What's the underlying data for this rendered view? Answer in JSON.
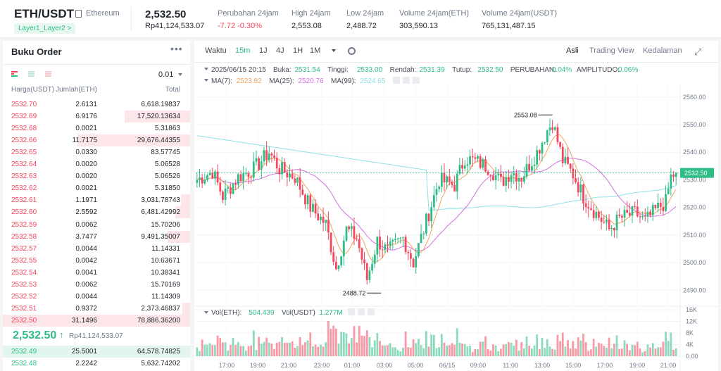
{
  "header": {
    "pair": "ETH/USDT",
    "pair_sub": "Ethereum",
    "tag": "Layer1_Layer2 >",
    "price": "2,532.50",
    "price_fiat": "Rp41,124,533.07",
    "stats": [
      {
        "label": "Perubahan 24jam",
        "value": "-7.72 -0.30%",
        "negative": true
      },
      {
        "label": "High 24jam",
        "value": "2,553.08",
        "negative": false
      },
      {
        "label": "Low 24jam",
        "value": "2,488.72",
        "negative": false
      },
      {
        "label": "Volume 24jam(ETH)",
        "value": "303,590.13",
        "negative": false
      },
      {
        "label": "Volume 24jam(USDT)",
        "value": "765,131,487.15",
        "negative": false
      }
    ]
  },
  "orderbook": {
    "title": "Buku Order",
    "more": "•••",
    "precision": "0.01",
    "headers": {
      "price": "Harga(USDT)",
      "qty": "Jumlah(ETH)",
      "total": "Total"
    },
    "asks": [
      {
        "price": "2532.70",
        "qty": "2.6131",
        "total": "6,618.19837",
        "depth": 0.0
      },
      {
        "price": "2532.69",
        "qty": "6.9176",
        "total": "17,520.13634",
        "depth": 0.35
      },
      {
        "price": "2532.68",
        "qty": "0.0021",
        "total": "5.31863",
        "depth": 0.0
      },
      {
        "price": "2532.66",
        "qty": "11.7175",
        "total": "29,676.44355",
        "depth": 0.6
      },
      {
        "price": "2532.65",
        "qty": "0.0330",
        "total": "83.57745",
        "depth": 0.0
      },
      {
        "price": "2532.64",
        "qty": "0.0020",
        "total": "5.06528",
        "depth": 0.0
      },
      {
        "price": "2532.63",
        "qty": "0.0020",
        "total": "5.06526",
        "depth": 0.0
      },
      {
        "price": "2532.62",
        "qty": "0.0021",
        "total": "5.31850",
        "depth": 0.0
      },
      {
        "price": "2532.61",
        "qty": "1.1971",
        "total": "3,031.78743",
        "depth": 0.05
      },
      {
        "price": "2532.60",
        "qty": "2.5592",
        "total": "6,481.42992",
        "depth": 0.08
      },
      {
        "price": "2532.59",
        "qty": "0.0062",
        "total": "15.70206",
        "depth": 0.0
      },
      {
        "price": "2532.58",
        "qty": "3.7477",
        "total": "9,491.35007",
        "depth": 0.12
      },
      {
        "price": "2532.57",
        "qty": "0.0044",
        "total": "11.14331",
        "depth": 0.0
      },
      {
        "price": "2532.55",
        "qty": "0.0042",
        "total": "10.63671",
        "depth": 0.0
      },
      {
        "price": "2532.54",
        "qty": "0.0041",
        "total": "10.38341",
        "depth": 0.0
      },
      {
        "price": "2532.53",
        "qty": "0.0062",
        "total": "15.70169",
        "depth": 0.0
      },
      {
        "price": "2532.52",
        "qty": "0.0044",
        "total": "11.14309",
        "depth": 0.0
      },
      {
        "price": "2532.51",
        "qty": "0.9372",
        "total": "2,373.46837",
        "depth": 0.04
      },
      {
        "price": "2532.50",
        "qty": "31.1496",
        "total": "78,886.36200",
        "depth": 1.0
      }
    ],
    "mid": {
      "price": "2,532.50",
      "arrow": "↑",
      "fiat": "Rp41,124,533.07"
    },
    "bids": [
      {
        "price": "2532.49",
        "qty": "25.5001",
        "total": "64,578.74825",
        "depth": 1.0
      },
      {
        "price": "2532.48",
        "qty": "2.2242",
        "total": "5,632.74202",
        "depth": 0.0
      }
    ]
  },
  "chart_toolbar": {
    "items": [
      "Waktu",
      "15m",
      "1J",
      "4J",
      "1H",
      "1M"
    ],
    "active": "15m",
    "right": [
      "Asli",
      "Trading View",
      "Kedalaman"
    ],
    "right_active": "Asli"
  },
  "chart_data": {
    "type": "candlestick",
    "legend": {
      "date": "2025/06/15 20:15",
      "items": [
        {
          "label": "Buka:",
          "value": "2531.54"
        },
        {
          "label": "Tinggi:",
          "value": "2533.00"
        },
        {
          "label": "Rendah:",
          "value": "2531.39"
        },
        {
          "label": "Tutup:",
          "value": "2532.50"
        },
        {
          "label": "PERUBAHAN:",
          "value": "0.04%"
        },
        {
          "label": "AMPLITUDO:",
          "value": "0.06%"
        }
      ],
      "ma": [
        {
          "label": "MA(7):",
          "value": "2523.82",
          "color": "#f0a35e"
        },
        {
          "label": "MA(25):",
          "value": "2520.76",
          "color": "#d36fe0"
        },
        {
          "label": "MA(99):",
          "value": "2524.65",
          "color": "#8fe0e8"
        }
      ]
    },
    "y_ticks": [
      "2560.00",
      "2550.00",
      "2540.00",
      "2530.00",
      "2520.00",
      "2510.00",
      "2500.00",
      "2490.00"
    ],
    "ylim": [
      2485,
      2563
    ],
    "last_price": "2532.50",
    "high_label": "2553.08",
    "low_label": "2488.72",
    "x_ticks": [
      "17:00",
      "19:00",
      "21:00",
      "23:00",
      "01:00",
      "03:00",
      "05:00",
      "06/15",
      "09:00",
      "11:00",
      "13:00",
      "15:00",
      "17:00",
      "19:00",
      "21:00"
    ],
    "volume": {
      "legend": [
        {
          "label": "Vol(ETH):",
          "value": "504.439"
        },
        {
          "label": "Vol(USDT)",
          "value": "1.277M"
        }
      ],
      "y_ticks": [
        "16K",
        "12K",
        "8K",
        "4K",
        "0.00"
      ],
      "ylim": [
        0,
        16000
      ]
    },
    "colors": {
      "up": "#2ebd85",
      "down": "#f6465d"
    }
  }
}
